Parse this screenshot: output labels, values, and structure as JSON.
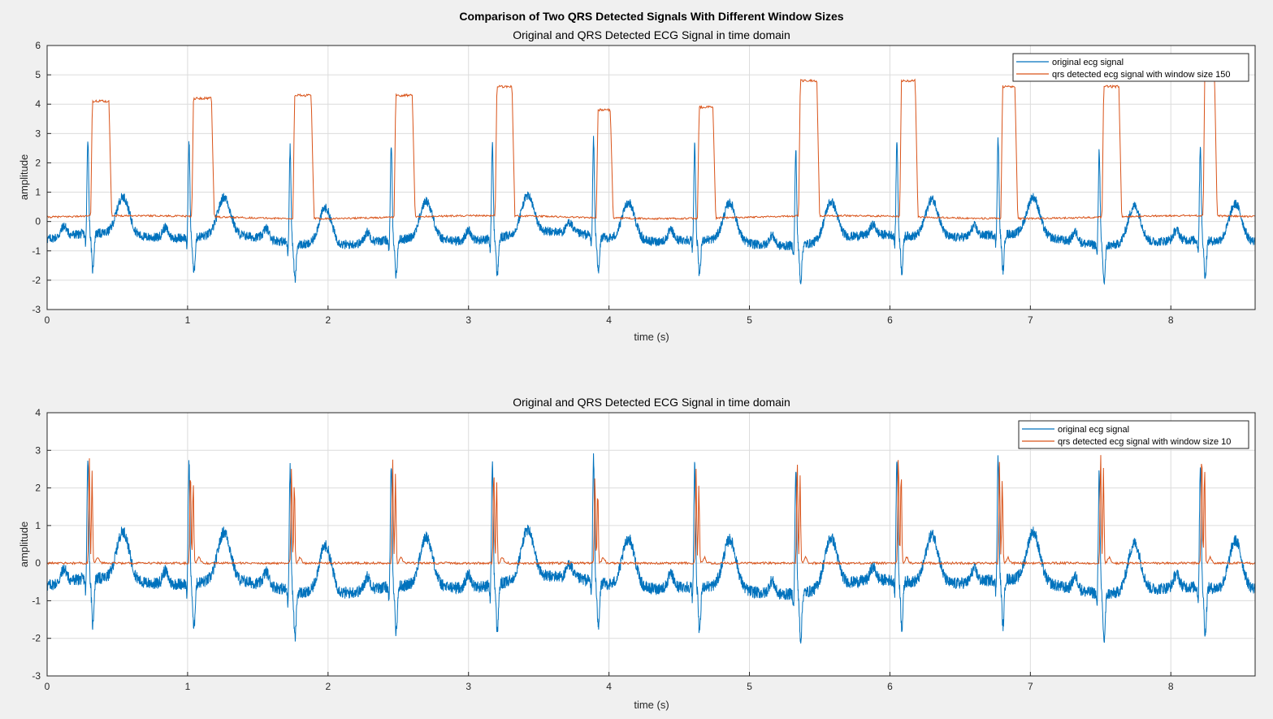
{
  "figure": {
    "suptitle": "Comparison of Two QRS Detected Signals With Different Window Sizes"
  },
  "colors": {
    "background": "#f0f0f0",
    "axes_bg": "#ffffff",
    "grid": "#dcdcdc",
    "ecg": "#0072bd",
    "qrs": "#d95319"
  },
  "chart_data": [
    {
      "type": "line",
      "title": "Original and QRS Detected ECG Signal in time domain",
      "xlabel": "time (s)",
      "ylabel": "amplitude",
      "xlim": [
        0,
        8.6
      ],
      "ylim": [
        -3,
        6
      ],
      "xticks": [
        "0",
        "1",
        "2",
        "3",
        "4",
        "5",
        "6",
        "7",
        "8"
      ],
      "yticks": [
        "-3",
        "-2",
        "-1",
        "0",
        "1",
        "2",
        "3",
        "4",
        "5",
        "6"
      ],
      "grid": true,
      "legend_position": "top-right",
      "beats": [
        0.29,
        1.01,
        1.73,
        2.45,
        3.17,
        3.89,
        4.61,
        5.33,
        6.05,
        6.77,
        7.49,
        8.21
      ],
      "series": [
        {
          "name": "original ecg signal",
          "kind": "ecg",
          "description_points": [
            [
              0.29,
              2.6
            ],
            [
              0.33,
              -1.9
            ],
            [
              0.55,
              0.8
            ],
            [
              1.01,
              2.6
            ],
            [
              1.05,
              -1.7
            ],
            [
              1.27,
              0.8
            ],
            [
              1.73,
              2.6
            ],
            [
              1.77,
              -2.0
            ],
            [
              1.97,
              0.7
            ],
            [
              2.45,
              2.6
            ],
            [
              2.49,
              -1.8
            ],
            [
              2.69,
              0.7
            ],
            [
              3.17,
              2.6
            ],
            [
              3.21,
              -2.1
            ],
            [
              3.41,
              0.3
            ],
            [
              3.89,
              2.6
            ],
            [
              3.93,
              -1.8
            ],
            [
              4.12,
              1.0
            ],
            [
              4.61,
              2.6
            ],
            [
              4.65,
              -1.7
            ],
            [
              4.84,
              0.8
            ],
            [
              5.33,
              2.6
            ],
            [
              5.37,
              -1.9
            ],
            [
              5.57,
              0.5
            ],
            [
              6.05,
              2.6
            ],
            [
              6.09,
              -2.1
            ],
            [
              6.27,
              0.8
            ],
            [
              6.77,
              2.6
            ],
            [
              6.81,
              -1.7
            ],
            [
              6.98,
              0.5
            ],
            [
              7.49,
              2.6
            ],
            [
              7.53,
              -1.9
            ],
            [
              7.71,
              0.6
            ],
            [
              8.21,
              2.6
            ],
            [
              8.25,
              -2.3
            ],
            [
              8.43,
              0.5
            ]
          ]
        },
        {
          "name": "qrs detected ecg signal with window size 150",
          "kind": "plateau",
          "baseline": 0.15,
          "plateaus": [
            {
              "start": 0.31,
              "end": 0.46,
              "height": 4.1
            },
            {
              "start": 1.03,
              "end": 1.19,
              "height": 4.2
            },
            {
              "start": 1.75,
              "end": 1.9,
              "height": 4.3
            },
            {
              "start": 2.47,
              "end": 2.62,
              "height": 4.3
            },
            {
              "start": 3.19,
              "end": 3.33,
              "height": 4.6
            },
            {
              "start": 3.91,
              "end": 4.03,
              "height": 3.8
            },
            {
              "start": 4.63,
              "end": 4.76,
              "height": 3.9
            },
            {
              "start": 5.35,
              "end": 5.5,
              "height": 4.8
            },
            {
              "start": 6.07,
              "end": 6.2,
              "height": 4.8
            },
            {
              "start": 6.79,
              "end": 6.91,
              "height": 4.6
            },
            {
              "start": 7.51,
              "end": 7.65,
              "height": 4.6
            },
            {
              "start": 8.23,
              "end": 8.33,
              "height": 5.2
            }
          ]
        }
      ]
    },
    {
      "type": "line",
      "title": "Original and QRS Detected ECG Signal in time domain",
      "xlabel": "time (s)",
      "ylabel": "amplitude",
      "xlim": [
        0,
        8.6
      ],
      "ylim": [
        -3,
        4
      ],
      "xticks": [
        "0",
        "1",
        "2",
        "3",
        "4",
        "5",
        "6",
        "7",
        "8"
      ],
      "yticks": [
        "-3",
        "-2",
        "-1",
        "0",
        "1",
        "2",
        "3",
        "4"
      ],
      "grid": true,
      "legend_position": "top-right",
      "beats": [
        0.29,
        1.01,
        1.73,
        2.45,
        3.17,
        3.89,
        4.61,
        5.33,
        6.05,
        6.77,
        7.49,
        8.21
      ],
      "series": [
        {
          "name": "original ecg signal",
          "kind": "ecg"
        },
        {
          "name": "qrs detected ecg signal with window size 10",
          "kind": "spikes",
          "baseline": 0.0,
          "spike_heights": [
            2.9,
            2.6,
            2.6,
            2.8,
            2.6,
            2.4,
            2.5,
            2.8,
            3.0,
            2.7,
            3.0,
            3.1
          ]
        }
      ]
    }
  ]
}
